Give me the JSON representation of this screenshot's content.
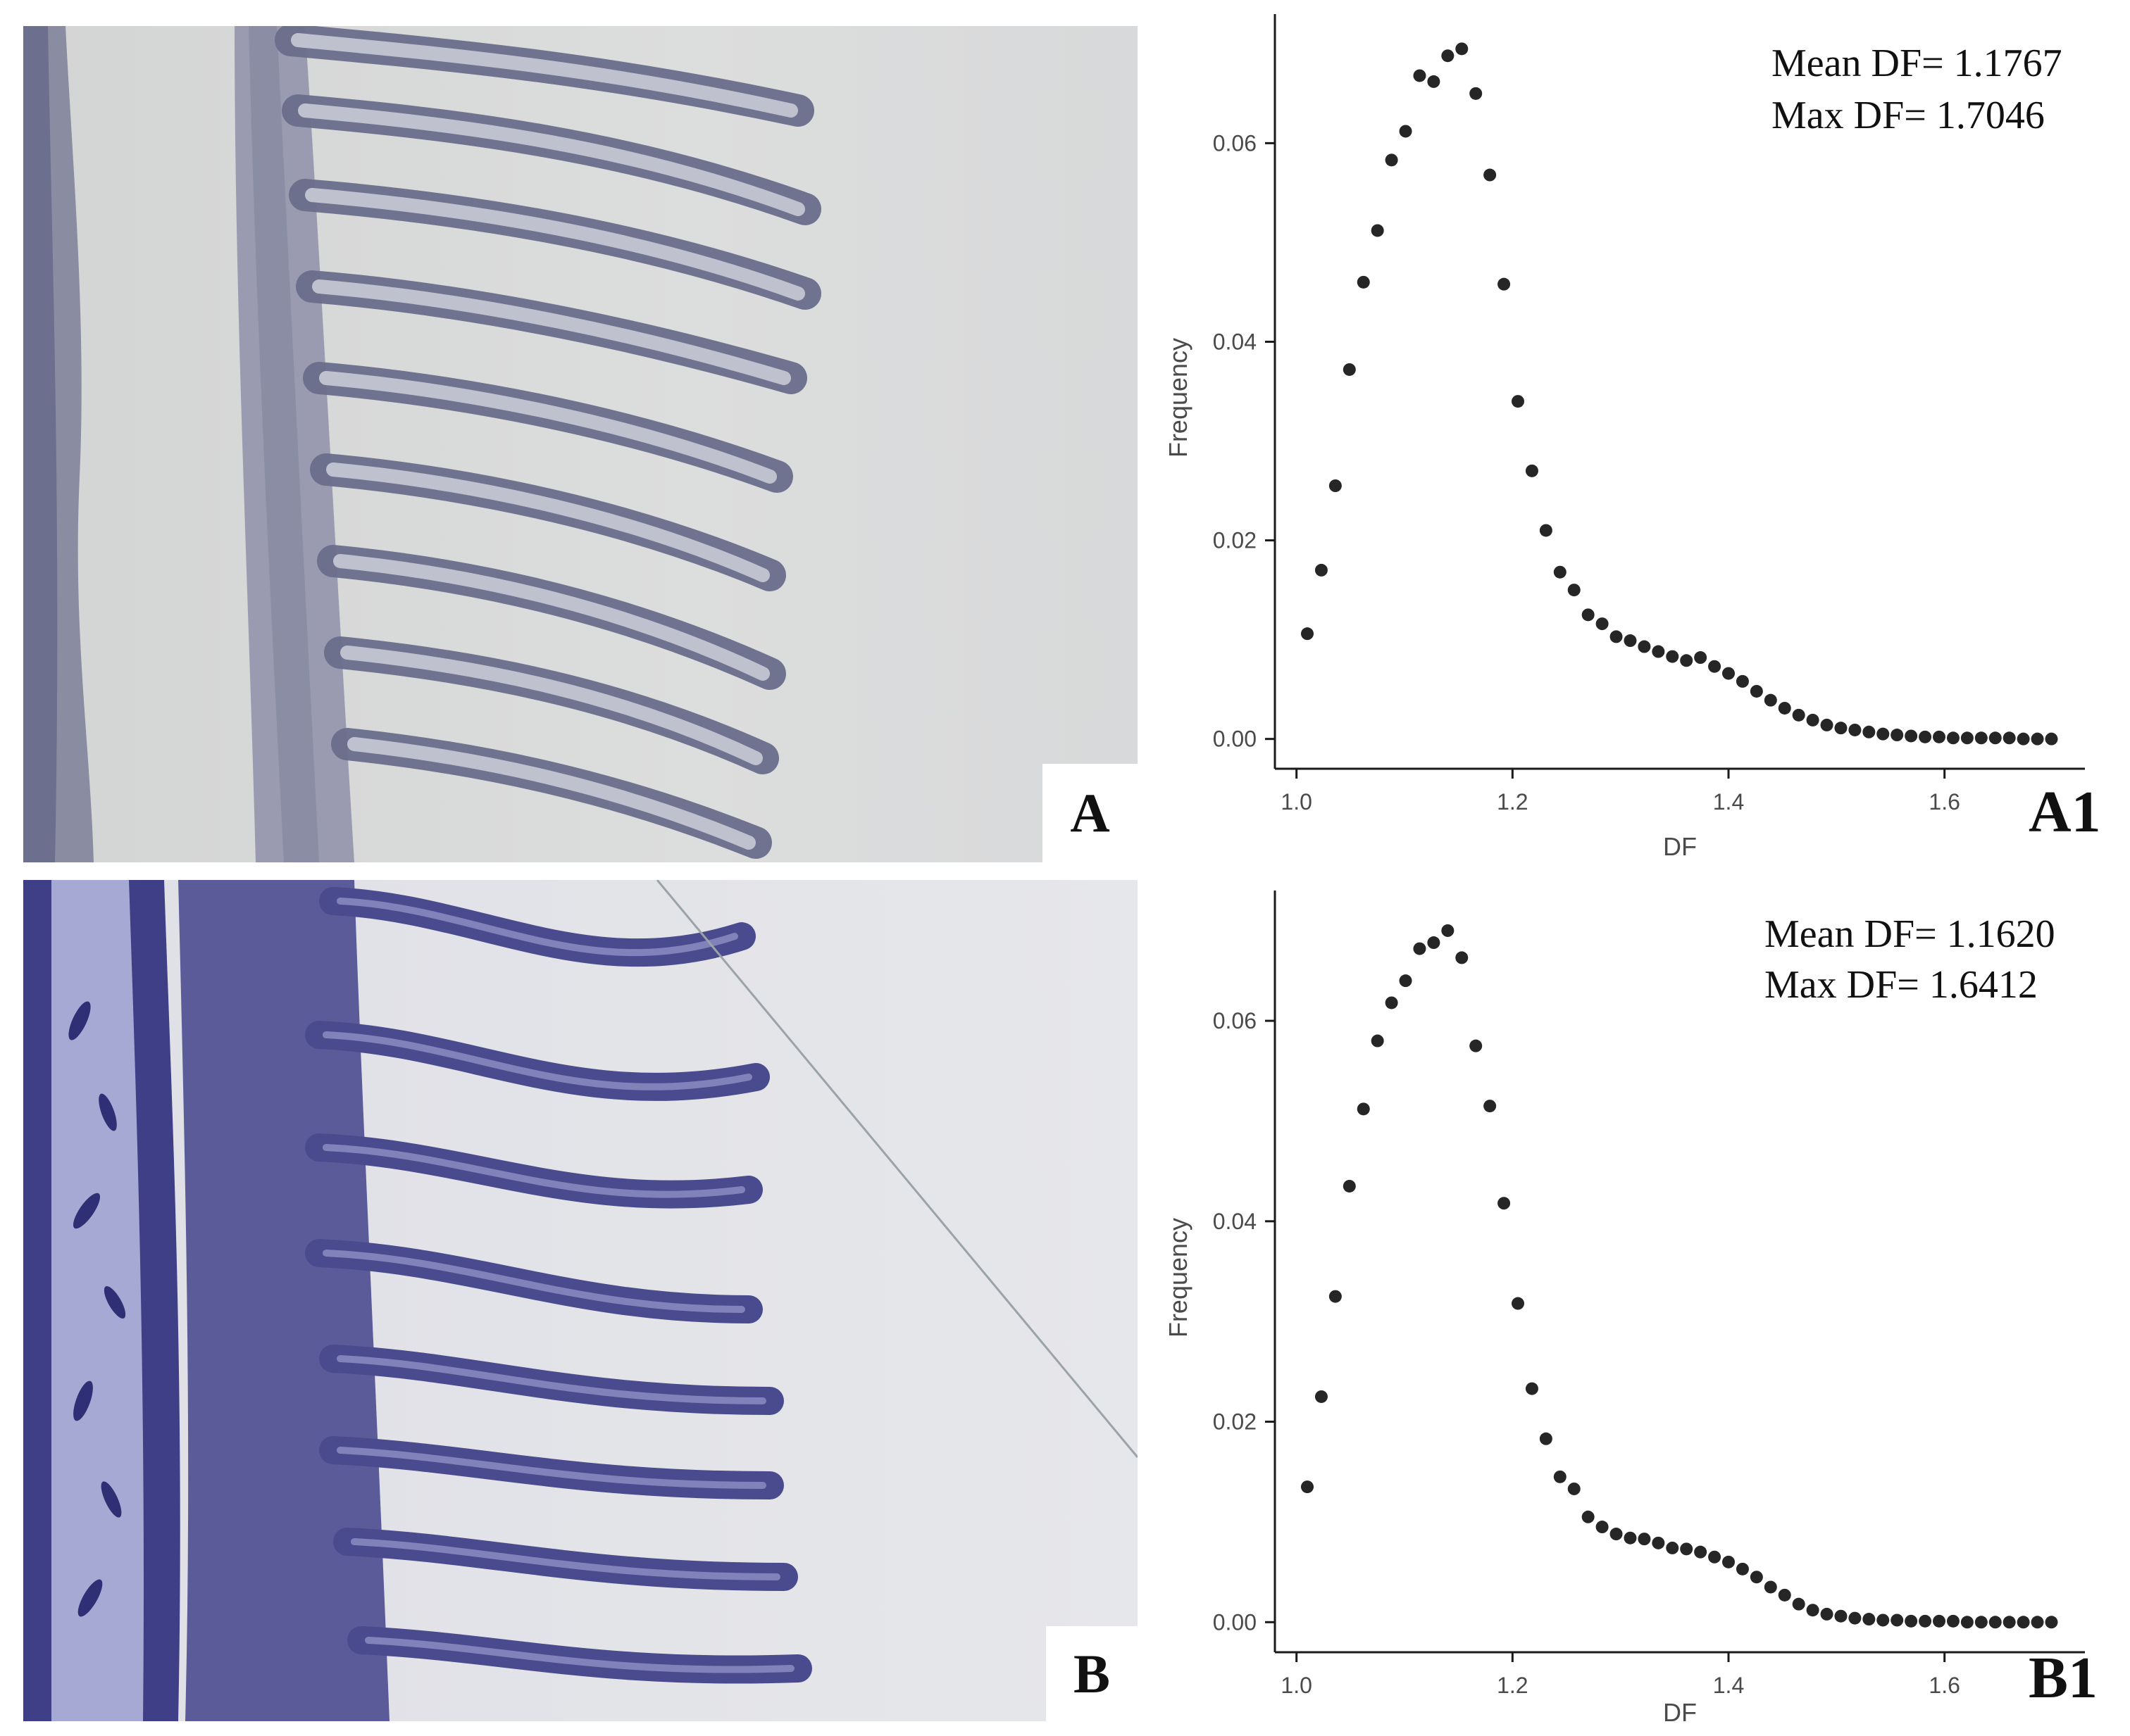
{
  "panels": {
    "a_label": "A",
    "b_label": "B"
  },
  "chart_data": [
    {
      "type": "scatter",
      "panel_label": "A1",
      "xlabel": "DF",
      "ylabel": "Frequency",
      "xlim": [
        0.98,
        1.73
      ],
      "ylim": [
        -0.003,
        0.073
      ],
      "xticks": [
        1.0,
        1.2,
        1.4,
        1.6
      ],
      "xtick_labels": [
        "1.0",
        "1.2",
        "1.4",
        "1.6"
      ],
      "yticks": [
        0.0,
        0.02,
        0.04,
        0.06
      ],
      "ytick_labels": [
        "0.00",
        "0.02",
        "0.04",
        "0.06"
      ],
      "grid": false,
      "point_color": "#262626",
      "annotations": [
        "Mean DF= 1.1767",
        "Max DF= 1.7046"
      ],
      "x": [
        1.01,
        1.023,
        1.036,
        1.049,
        1.062,
        1.075,
        1.088,
        1.101,
        1.114,
        1.127,
        1.14,
        1.153,
        1.166,
        1.179,
        1.192,
        1.205,
        1.218,
        1.231,
        1.244,
        1.257,
        1.27,
        1.283,
        1.296,
        1.309,
        1.322,
        1.335,
        1.348,
        1.361,
        1.374,
        1.387,
        1.4,
        1.413,
        1.426,
        1.439,
        1.452,
        1.465,
        1.478,
        1.491,
        1.504,
        1.517,
        1.53,
        1.543,
        1.556,
        1.569,
        1.582,
        1.595,
        1.608,
        1.621,
        1.634,
        1.647,
        1.66,
        1.673,
        1.686,
        1.699
      ],
      "y": [
        0.0106,
        0.017,
        0.0255,
        0.0372,
        0.046,
        0.0512,
        0.0583,
        0.0612,
        0.0668,
        0.0662,
        0.0688,
        0.0695,
        0.065,
        0.0568,
        0.0458,
        0.034,
        0.027,
        0.021,
        0.0168,
        0.015,
        0.0125,
        0.0116,
        0.0103,
        0.0099,
        0.0093,
        0.0088,
        0.0083,
        0.0079,
        0.0082,
        0.0073,
        0.0066,
        0.0058,
        0.0048,
        0.0039,
        0.0031,
        0.0024,
        0.0019,
        0.0014,
        0.0011,
        0.0009,
        0.0007,
        0.0005,
        0.0004,
        0.0003,
        0.0002,
        0.0002,
        0.0001,
        0.0001,
        0.0001,
        0.0001,
        0.0001,
        0.0,
        0.0,
        0.0
      ]
    },
    {
      "type": "scatter",
      "panel_label": "B1",
      "xlabel": "DF",
      "ylabel": "Frequency",
      "xlim": [
        0.98,
        1.73
      ],
      "ylim": [
        -0.003,
        0.073
      ],
      "xticks": [
        1.0,
        1.2,
        1.4,
        1.6
      ],
      "xtick_labels": [
        "1.0",
        "1.2",
        "1.4",
        "1.6"
      ],
      "yticks": [
        0.0,
        0.02,
        0.04,
        0.06
      ],
      "ytick_labels": [
        "0.00",
        "0.02",
        "0.04",
        "0.06"
      ],
      "grid": false,
      "point_color": "#262626",
      "annotations": [
        "Mean DF= 1.1620",
        "Max DF= 1.6412"
      ],
      "x": [
        1.01,
        1.023,
        1.036,
        1.049,
        1.062,
        1.075,
        1.088,
        1.101,
        1.114,
        1.127,
        1.14,
        1.153,
        1.166,
        1.179,
        1.192,
        1.205,
        1.218,
        1.231,
        1.244,
        1.257,
        1.27,
        1.283,
        1.296,
        1.309,
        1.322,
        1.335,
        1.348,
        1.361,
        1.374,
        1.387,
        1.4,
        1.413,
        1.426,
        1.439,
        1.452,
        1.465,
        1.478,
        1.491,
        1.504,
        1.517,
        1.53,
        1.543,
        1.556,
        1.569,
        1.582,
        1.595,
        1.608,
        1.621,
        1.634,
        1.647,
        1.66,
        1.673,
        1.686,
        1.699
      ],
      "y": [
        0.0135,
        0.0225,
        0.0325,
        0.0435,
        0.0512,
        0.058,
        0.0618,
        0.064,
        0.0672,
        0.0678,
        0.069,
        0.0663,
        0.0575,
        0.0515,
        0.0418,
        0.0318,
        0.0233,
        0.0183,
        0.0145,
        0.0133,
        0.0105,
        0.0095,
        0.0088,
        0.0084,
        0.0083,
        0.0079,
        0.0074,
        0.0073,
        0.007,
        0.0065,
        0.006,
        0.0053,
        0.0045,
        0.0035,
        0.0027,
        0.0018,
        0.0012,
        0.0008,
        0.0006,
        0.0004,
        0.0003,
        0.0002,
        0.0002,
        0.0001,
        0.0001,
        0.0001,
        0.0001,
        0.0,
        0.0,
        0.0,
        0.0,
        0.0,
        0.0,
        0.0
      ]
    }
  ]
}
